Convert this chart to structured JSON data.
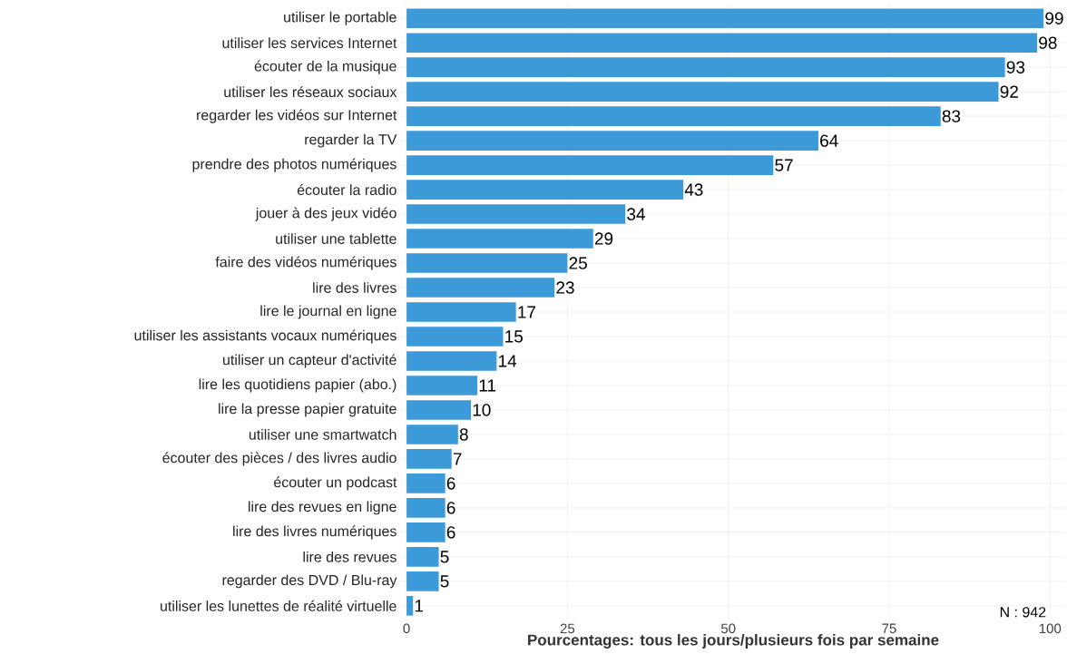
{
  "chart_data": {
    "type": "bar",
    "orientation": "horizontal",
    "xlabel": "Pourcentages: tous les jours/plusieurs fois par semaine",
    "categories": [
      "utiliser le portable",
      "utiliser les services Internet",
      "écouter de la musique",
      "utiliser les réseaux sociaux",
      "regarder les vidéos sur Internet",
      "regarder la TV",
      "prendre des photos numériques",
      "écouter la radio",
      "jouer à des jeux vidéo",
      "utiliser une tablette",
      "faire des vidéos numériques",
      "lire des livres",
      "lire le journal en ligne",
      "utiliser les assistants vocaux numériques",
      "utiliser un capteur d'activité",
      "lire les quotidiens papier (abo.)",
      "lire la presse papier gratuite",
      "utiliser une smartwatch",
      "écouter des pièces / des livres audio",
      "écouter un podcast",
      "lire des revues en ligne",
      "lire des livres numériques",
      "lire des revues",
      "regarder des DVD / Blu-ray",
      "utiliser les lunettes de réalité virtuelle"
    ],
    "values": [
      99,
      98,
      93,
      92,
      83,
      64,
      57,
      43,
      34,
      29,
      25,
      23,
      17,
      15,
      14,
      11,
      10,
      8,
      7,
      6,
      6,
      6,
      5,
      5,
      1
    ],
    "color": "#3d9ad8",
    "data_labels": true,
    "xlim": [
      -1,
      102.5
    ],
    "xticks": [
      0,
      25,
      50,
      75,
      100
    ],
    "grid": true,
    "annotations": [
      "N : 942"
    ]
  }
}
